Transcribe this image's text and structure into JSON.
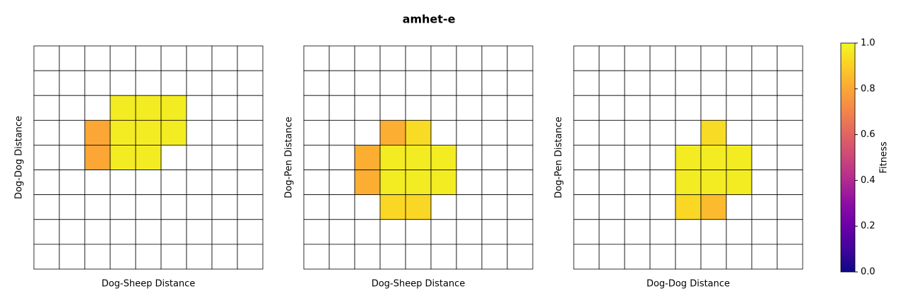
{
  "chart_data": {
    "type": "heatmap",
    "title": "amhet-e",
    "colormap": "plasma",
    "colorbar_label": "Fitness",
    "clim": [
      0,
      1
    ],
    "cticks": [
      {
        "value": 0,
        "label": "0.0"
      },
      {
        "value": 0.2,
        "label": "0.2"
      },
      {
        "value": 0.4,
        "label": "0.4"
      },
      {
        "value": 0.6,
        "label": "0.6"
      },
      {
        "value": 0.8,
        "label": "0.8"
      },
      {
        "value": 1,
        "label": "1.0"
      }
    ],
    "panels": [
      {
        "xlabel": "Dog-Sheep Distance",
        "ylabel": "Dog-Dog Distance",
        "cells": [
          [
            null,
            null,
            null,
            null,
            null,
            null,
            null,
            null,
            null
          ],
          [
            null,
            null,
            null,
            null,
            null,
            null,
            null,
            null,
            null
          ],
          [
            null,
            null,
            null,
            0.97,
            0.97,
            0.97,
            null,
            null,
            null
          ],
          [
            null,
            null,
            0.8,
            0.97,
            0.97,
            0.97,
            null,
            null,
            null
          ],
          [
            null,
            null,
            0.8,
            0.97,
            0.97,
            null,
            null,
            null,
            null
          ],
          [
            null,
            null,
            null,
            null,
            null,
            null,
            null,
            null,
            null
          ],
          [
            null,
            null,
            null,
            null,
            null,
            null,
            null,
            null,
            null
          ],
          [
            null,
            null,
            null,
            null,
            null,
            null,
            null,
            null,
            null
          ],
          [
            null,
            null,
            null,
            null,
            null,
            null,
            null,
            null,
            null
          ]
        ]
      },
      {
        "xlabel": "Dog-Sheep Distance",
        "ylabel": "Dog-Pen Distance",
        "cells": [
          [
            null,
            null,
            null,
            null,
            null,
            null,
            null,
            null,
            null
          ],
          [
            null,
            null,
            null,
            null,
            null,
            null,
            null,
            null,
            null
          ],
          [
            null,
            null,
            null,
            null,
            null,
            null,
            null,
            null,
            null
          ],
          [
            null,
            null,
            null,
            0.82,
            0.93,
            null,
            null,
            null,
            null
          ],
          [
            null,
            null,
            0.82,
            0.97,
            0.97,
            0.97,
            null,
            null,
            null
          ],
          [
            null,
            null,
            0.82,
            0.97,
            0.97,
            0.97,
            null,
            null,
            null
          ],
          [
            null,
            null,
            null,
            0.92,
            0.92,
            null,
            null,
            null,
            null
          ],
          [
            null,
            null,
            null,
            null,
            null,
            null,
            null,
            null,
            null
          ],
          [
            null,
            null,
            null,
            null,
            null,
            null,
            null,
            null,
            null
          ]
        ]
      },
      {
        "xlabel": "Dog-Dog Distance",
        "ylabel": "Dog-Pen Distance",
        "cells": [
          [
            null,
            null,
            null,
            null,
            null,
            null,
            null,
            null,
            null
          ],
          [
            null,
            null,
            null,
            null,
            null,
            null,
            null,
            null,
            null
          ],
          [
            null,
            null,
            null,
            null,
            null,
            null,
            null,
            null,
            null
          ],
          [
            null,
            null,
            null,
            null,
            null,
            0.93,
            null,
            null,
            null
          ],
          [
            null,
            null,
            null,
            null,
            0.97,
            0.97,
            0.97,
            null,
            null
          ],
          [
            null,
            null,
            null,
            null,
            0.97,
            0.97,
            0.97,
            null,
            null
          ],
          [
            null,
            null,
            null,
            null,
            0.92,
            0.85,
            null,
            null,
            null
          ],
          [
            null,
            null,
            null,
            null,
            null,
            null,
            null,
            null,
            null
          ],
          [
            null,
            null,
            null,
            null,
            null,
            null,
            null,
            null,
            null
          ]
        ]
      }
    ]
  }
}
